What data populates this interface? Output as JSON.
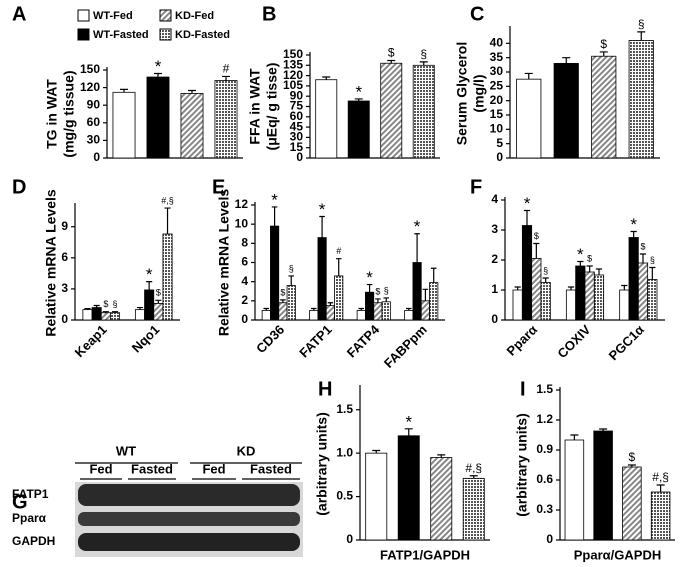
{
  "legend": [
    {
      "name": "WT-Fed",
      "fill": "white"
    },
    {
      "name": "KD-Fed",
      "fill": "hatch"
    },
    {
      "name": "WT-Fasted",
      "fill": "black"
    },
    {
      "name": "KD-Fasted",
      "fill": "grid"
    }
  ],
  "blot": {
    "panel": "G",
    "groups": [
      "WT",
      "KD"
    ],
    "conditions": [
      "Fed",
      "Fasted",
      "Fed",
      "Fasted"
    ],
    "rows": [
      "FATP1",
      "Pparα",
      "GAPDH"
    ]
  },
  "chart_data": [
    {
      "type": "bar",
      "panel": "A",
      "ylabel": [
        "TG in WAT",
        "(mg/g tissue)"
      ],
      "ylim": [
        0,
        150
      ],
      "yticks": [
        0,
        30,
        60,
        90,
        120,
        150
      ],
      "series": [
        {
          "fill": "white",
          "values": [
            112
          ],
          "errors": [
            5
          ],
          "annotations": [
            null
          ]
        },
        {
          "fill": "black",
          "values": [
            138
          ],
          "errors": [
            6
          ],
          "annotations": [
            "*"
          ]
        },
        {
          "fill": "hatch",
          "values": [
            110
          ],
          "errors": [
            5
          ],
          "annotations": [
            null
          ]
        },
        {
          "fill": "grid",
          "values": [
            132
          ],
          "errors": [
            7
          ],
          "annotations": [
            "#"
          ]
        }
      ]
    },
    {
      "type": "bar",
      "panel": "B",
      "ylabel": [
        "FFA in WAT",
        "(μEq/ g tisse)"
      ],
      "ylim": [
        0,
        150
      ],
      "yticks": [
        0,
        15,
        30,
        45,
        60,
        75,
        90,
        105,
        120,
        135,
        150
      ],
      "series": [
        {
          "fill": "white",
          "values": [
            114
          ],
          "errors": [
            4
          ],
          "annotations": [
            null
          ]
        },
        {
          "fill": "black",
          "values": [
            83
          ],
          "errors": [
            3
          ],
          "annotations": [
            "*"
          ]
        },
        {
          "fill": "hatch",
          "values": [
            138
          ],
          "errors": [
            4
          ],
          "annotations": [
            "$"
          ]
        },
        {
          "fill": "grid",
          "values": [
            135
          ],
          "errors": [
            5
          ],
          "annotations": [
            "§"
          ]
        }
      ]
    },
    {
      "type": "bar",
      "panel": "C",
      "ylabel": [
        "Serum Glycerol",
        "(mg/l)"
      ],
      "ylim": [
        0,
        45
      ],
      "yticks": [
        0,
        5,
        10,
        15,
        20,
        25,
        30,
        35,
        40
      ],
      "series": [
        {
          "fill": "white",
          "values": [
            27.5
          ],
          "errors": [
            2
          ],
          "annotations": [
            null
          ]
        },
        {
          "fill": "black",
          "values": [
            33
          ],
          "errors": [
            2
          ],
          "annotations": [
            null
          ]
        },
        {
          "fill": "hatch",
          "values": [
            35.5
          ],
          "errors": [
            1.5
          ],
          "annotations": [
            "$"
          ]
        },
        {
          "fill": "grid",
          "values": [
            41
          ],
          "errors": [
            3
          ],
          "annotations": [
            "§"
          ]
        }
      ]
    },
    {
      "type": "bar",
      "panel": "D",
      "ylabel": [
        "Relative mRNA Levels"
      ],
      "ylim": [
        0,
        11
      ],
      "yticks": [
        0,
        3,
        6,
        9
      ],
      "categories": [
        "Keap1",
        "Nqo1"
      ],
      "series": [
        {
          "fill": "white",
          "values": [
            1.0,
            1.0
          ],
          "errors": [
            0.1,
            0.2
          ],
          "annotations": [
            null,
            null
          ]
        },
        {
          "fill": "black",
          "values": [
            1.2,
            2.9
          ],
          "errors": [
            0.2,
            0.8
          ],
          "annotations": [
            null,
            "*"
          ]
        },
        {
          "fill": "hatch",
          "values": [
            0.7,
            1.6
          ],
          "errors": [
            0.1,
            0.3
          ],
          "annotations": [
            "$",
            "$"
          ]
        },
        {
          "fill": "grid",
          "values": [
            0.7,
            8.3
          ],
          "errors": [
            0.1,
            2.5
          ],
          "annotations": [
            "§",
            "#,§"
          ]
        }
      ]
    },
    {
      "type": "bar",
      "panel": "E",
      "ylabel": [
        "Relative mRNA Levels"
      ],
      "ylim": [
        0,
        12
      ],
      "yticks": [
        0,
        2,
        4,
        6,
        8,
        10,
        12
      ],
      "categories": [
        "CD36",
        "FATP1",
        "FATP4",
        "FABPpm"
      ],
      "series": [
        {
          "fill": "white",
          "values": [
            1,
            1,
            1,
            1
          ],
          "errors": [
            0.2,
            0.2,
            0.2,
            0.2
          ],
          "annotations": [
            null,
            null,
            null,
            null
          ]
        },
        {
          "fill": "black",
          "values": [
            9.8,
            8.6,
            2.9,
            6
          ],
          "errors": [
            2,
            2.2,
            0.8,
            3
          ],
          "annotations": [
            "*",
            "*",
            "*",
            "*"
          ]
        },
        {
          "fill": "hatch",
          "values": [
            1.8,
            1.5,
            1.8,
            2
          ],
          "errors": [
            0.3,
            0.3,
            0.4,
            1.2
          ],
          "annotations": [
            "$",
            null,
            "$",
            null
          ]
        },
        {
          "fill": "grid",
          "values": [
            3.6,
            4.6,
            1.9,
            3.9
          ],
          "errors": [
            1,
            1.8,
            0.4,
            1.5
          ],
          "annotations": [
            "§",
            "#",
            "§",
            null
          ]
        }
      ]
    },
    {
      "type": "bar",
      "panel": "F",
      "ylim": [
        0,
        4
      ],
      "yticks": [
        0,
        1,
        2,
        3,
        4
      ],
      "categories": [
        "Pparα",
        "COXIV",
        "PGC1α"
      ],
      "series": [
        {
          "fill": "white",
          "values": [
            1,
            1,
            1
          ],
          "errors": [
            0.1,
            0.1,
            0.15
          ],
          "annotations": [
            null,
            null,
            null
          ]
        },
        {
          "fill": "black",
          "values": [
            3.15,
            1.8,
            2.75
          ],
          "errors": [
            0.5,
            0.15,
            0.2
          ],
          "annotations": [
            "*",
            "*",
            "*"
          ]
        },
        {
          "fill": "hatch",
          "values": [
            2.05,
            1.6,
            1.9
          ],
          "errors": [
            0.5,
            0.2,
            0.3
          ],
          "annotations": [
            "$",
            "$",
            "$"
          ]
        },
        {
          "fill": "grid",
          "values": [
            1.25,
            1.5,
            1.35
          ],
          "errors": [
            0.15,
            0.2,
            0.4
          ],
          "annotations": [
            "§",
            null,
            "§"
          ]
        }
      ]
    },
    {
      "type": "bar",
      "panel": "H",
      "ylabel": [
        "(arbitrary units)"
      ],
      "xlabel": "FATP1/GAPDH",
      "ylim": [
        0,
        1.75
      ],
      "yticks": [
        0,
        0.5,
        {
          "value": 1,
          "label": "1.0"
        },
        1.5
      ],
      "series": [
        {
          "fill": "white",
          "values": [
            1.0
          ],
          "errors": [
            0.03
          ],
          "annotations": [
            null
          ]
        },
        {
          "fill": "black",
          "values": [
            1.2
          ],
          "errors": [
            0.08
          ],
          "annotations": [
            "*"
          ]
        },
        {
          "fill": "hatch",
          "values": [
            0.95
          ],
          "errors": [
            0.03
          ],
          "annotations": [
            null
          ]
        },
        {
          "fill": "grid",
          "values": [
            0.71
          ],
          "errors": [
            0.03
          ],
          "annotations": [
            "#,§"
          ]
        }
      ]
    },
    {
      "type": "bar",
      "panel": "I",
      "ylabel": [
        "(arbitrary units)"
      ],
      "xlabel": "Pparα/GAPDH",
      "ylim": [
        0,
        1.5
      ],
      "yticks": [
        0,
        0.3,
        0.6,
        0.9,
        1.2,
        1.5
      ],
      "series": [
        {
          "fill": "white",
          "values": [
            1.0
          ],
          "errors": [
            0.05
          ],
          "annotations": [
            null
          ]
        },
        {
          "fill": "black",
          "values": [
            1.09
          ],
          "errors": [
            0.02
          ],
          "annotations": [
            null
          ]
        },
        {
          "fill": "hatch",
          "values": [
            0.73
          ],
          "errors": [
            0.02
          ],
          "annotations": [
            "$"
          ]
        },
        {
          "fill": "grid",
          "values": [
            0.48
          ],
          "errors": [
            0.07
          ],
          "annotations": [
            "#,§"
          ]
        }
      ]
    }
  ]
}
